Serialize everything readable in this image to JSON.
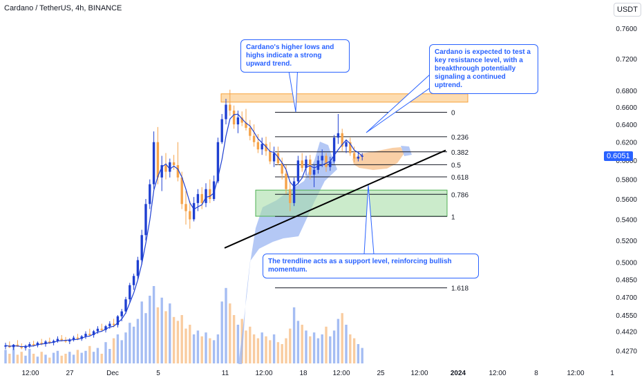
{
  "header": {
    "symbol_title": "Cardano / TetherUS, 4h, BINANCE",
    "currency_button": "USDT",
    "last_price": "0.6051"
  },
  "colors": {
    "candle_up": "#1e3fd1",
    "candle_down": "#f5a34a",
    "ma_line": "#1e3fd1",
    "cloud_bull": "#9bb6f2",
    "cloud_bear": "#f8c796",
    "resistance_zone": "#fcc070",
    "support_zone": "#a8dea8",
    "accent": "#2962ff",
    "fib_line": "#131722"
  },
  "annotations": {
    "higher_lows": "Cardano's higher lows and highs indicate a strong upward trend.",
    "resistance": "Cardano is expected to test a key resistance level, with a breakthrough potentially signaling a continued uptrend.",
    "trendline": "The trendline acts as a support level, reinforcing bullish momentum."
  },
  "chart_data": {
    "type": "candlestick",
    "title": "Cardano / TetherUS, 4h, BINANCE",
    "price_scale": "log",
    "y_axis_ticks": [
      "0.7600",
      "0.7200",
      "0.6800",
      "0.6600",
      "0.6400",
      "0.6200",
      "0.6000",
      "0.5800",
      "0.5600",
      "0.5400",
      "0.5200",
      "0.5000",
      "0.4850",
      "0.4700",
      "0.4550",
      "0.4420",
      "0.4270"
    ],
    "x_axis_ticks": [
      "12:00",
      "27",
      "Dec",
      "5",
      "11",
      "12:00",
      "18",
      "12:00",
      "25",
      "12:00",
      "2024",
      "12:00",
      "8",
      "12:00",
      "1"
    ],
    "last_price": 0.6051,
    "resistance_zone": [
      0.666,
      0.676
    ],
    "support_zone": [
      0.543,
      0.569
    ],
    "fib_levels": [
      {
        "label": "0",
        "price": 0.654
      },
      {
        "label": "0.236",
        "price": 0.626
      },
      {
        "label": "0.382",
        "price": 0.6093
      },
      {
        "label": "0.5",
        "price": 0.5955
      },
      {
        "label": "0.618",
        "price": 0.5826
      },
      {
        "label": "0.786",
        "price": 0.5647
      },
      {
        "label": "1",
        "price": 0.5428
      },
      {
        "label": "1.618",
        "price": 0.4777
      }
    ],
    "trendline": {
      "from_price": 0.513,
      "to_price": 0.611
    },
    "candles": [
      {
        "o": 0.43,
        "h": 0.433,
        "l": 0.428,
        "c": 0.431
      },
      {
        "o": 0.431,
        "h": 0.434,
        "l": 0.429,
        "c": 0.4295
      },
      {
        "o": 0.4295,
        "h": 0.432,
        "l": 0.4275,
        "c": 0.4315
      },
      {
        "o": 0.4315,
        "h": 0.435,
        "l": 0.43,
        "c": 0.43
      },
      {
        "o": 0.43,
        "h": 0.4325,
        "l": 0.428,
        "c": 0.429
      },
      {
        "o": 0.429,
        "h": 0.4315,
        "l": 0.427,
        "c": 0.4305
      },
      {
        "o": 0.4305,
        "h": 0.4335,
        "l": 0.429,
        "c": 0.432
      },
      {
        "o": 0.432,
        "h": 0.4345,
        "l": 0.43,
        "c": 0.431
      },
      {
        "o": 0.431,
        "h": 0.434,
        "l": 0.4295,
        "c": 0.433
      },
      {
        "o": 0.433,
        "h": 0.436,
        "l": 0.431,
        "c": 0.432
      },
      {
        "o": 0.432,
        "h": 0.435,
        "l": 0.43,
        "c": 0.434
      },
      {
        "o": 0.434,
        "h": 0.437,
        "l": 0.432,
        "c": 0.433
      },
      {
        "o": 0.433,
        "h": 0.4355,
        "l": 0.431,
        "c": 0.4345
      },
      {
        "o": 0.4345,
        "h": 0.438,
        "l": 0.433,
        "c": 0.436
      },
      {
        "o": 0.436,
        "h": 0.439,
        "l": 0.434,
        "c": 0.435
      },
      {
        "o": 0.435,
        "h": 0.4375,
        "l": 0.433,
        "c": 0.434
      },
      {
        "o": 0.434,
        "h": 0.4365,
        "l": 0.432,
        "c": 0.4355
      },
      {
        "o": 0.4355,
        "h": 0.4385,
        "l": 0.434,
        "c": 0.437
      },
      {
        "o": 0.437,
        "h": 0.44,
        "l": 0.435,
        "c": 0.436
      },
      {
        "o": 0.436,
        "h": 0.439,
        "l": 0.4345,
        "c": 0.438
      },
      {
        "o": 0.438,
        "h": 0.442,
        "l": 0.436,
        "c": 0.44
      },
      {
        "o": 0.44,
        "h": 0.444,
        "l": 0.438,
        "c": 0.439
      },
      {
        "o": 0.439,
        "h": 0.443,
        "l": 0.437,
        "c": 0.442
      },
      {
        "o": 0.442,
        "h": 0.446,
        "l": 0.44,
        "c": 0.444
      },
      {
        "o": 0.444,
        "h": 0.448,
        "l": 0.442,
        "c": 0.443
      },
      {
        "o": 0.443,
        "h": 0.447,
        "l": 0.441,
        "c": 0.446
      },
      {
        "o": 0.446,
        "h": 0.45,
        "l": 0.444,
        "c": 0.448
      },
      {
        "o": 0.448,
        "h": 0.452,
        "l": 0.445,
        "c": 0.447
      },
      {
        "o": 0.447,
        "h": 0.455,
        "l": 0.445,
        "c": 0.454
      },
      {
        "o": 0.454,
        "h": 0.46,
        "l": 0.45,
        "c": 0.458
      },
      {
        "o": 0.458,
        "h": 0.47,
        "l": 0.456,
        "c": 0.468
      },
      {
        "o": 0.468,
        "h": 0.482,
        "l": 0.465,
        "c": 0.48
      },
      {
        "o": 0.48,
        "h": 0.49,
        "l": 0.476,
        "c": 0.488
      },
      {
        "o": 0.488,
        "h": 0.505,
        "l": 0.485,
        "c": 0.502
      },
      {
        "o": 0.502,
        "h": 0.53,
        "l": 0.498,
        "c": 0.525
      },
      {
        "o": 0.525,
        "h": 0.56,
        "l": 0.52,
        "c": 0.555
      },
      {
        "o": 0.555,
        "h": 0.58,
        "l": 0.55,
        "c": 0.575
      },
      {
        "o": 0.575,
        "h": 0.632,
        "l": 0.57,
        "c": 0.62
      },
      {
        "o": 0.62,
        "h": 0.637,
        "l": 0.575,
        "c": 0.582
      },
      {
        "o": 0.582,
        "h": 0.605,
        "l": 0.568,
        "c": 0.595
      },
      {
        "o": 0.595,
        "h": 0.608,
        "l": 0.58,
        "c": 0.588
      },
      {
        "o": 0.588,
        "h": 0.602,
        "l": 0.582,
        "c": 0.598
      },
      {
        "o": 0.598,
        "h": 0.606,
        "l": 0.59,
        "c": 0.595
      },
      {
        "o": 0.595,
        "h": 0.62,
        "l": 0.578,
        "c": 0.582
      },
      {
        "o": 0.582,
        "h": 0.588,
        "l": 0.55,
        "c": 0.555
      },
      {
        "o": 0.555,
        "h": 0.568,
        "l": 0.535,
        "c": 0.548
      },
      {
        "o": 0.548,
        "h": 0.558,
        "l": 0.531,
        "c": 0.54
      },
      {
        "o": 0.54,
        "h": 0.562,
        "l": 0.538,
        "c": 0.556
      },
      {
        "o": 0.556,
        "h": 0.57,
        "l": 0.548,
        "c": 0.565
      },
      {
        "o": 0.565,
        "h": 0.572,
        "l": 0.55,
        "c": 0.556
      },
      {
        "o": 0.556,
        "h": 0.576,
        "l": 0.552,
        "c": 0.57
      },
      {
        "o": 0.57,
        "h": 0.58,
        "l": 0.556,
        "c": 0.56
      },
      {
        "o": 0.56,
        "h": 0.584,
        "l": 0.558,
        "c": 0.578
      },
      {
        "o": 0.578,
        "h": 0.625,
        "l": 0.576,
        "c": 0.62
      },
      {
        "o": 0.62,
        "h": 0.652,
        "l": 0.618,
        "c": 0.646
      },
      {
        "o": 0.646,
        "h": 0.67,
        "l": 0.64,
        "c": 0.663
      },
      {
        "o": 0.663,
        "h": 0.681,
        "l": 0.65,
        "c": 0.656
      },
      {
        "o": 0.656,
        "h": 0.662,
        "l": 0.635,
        "c": 0.64
      },
      {
        "o": 0.64,
        "h": 0.656,
        "l": 0.63,
        "c": 0.648
      },
      {
        "o": 0.648,
        "h": 0.655,
        "l": 0.638,
        "c": 0.642
      },
      {
        "o": 0.642,
        "h": 0.658,
        "l": 0.633,
        "c": 0.636
      },
      {
        "o": 0.636,
        "h": 0.645,
        "l": 0.622,
        "c": 0.627
      },
      {
        "o": 0.627,
        "h": 0.64,
        "l": 0.615,
        "c": 0.62
      },
      {
        "o": 0.62,
        "h": 0.629,
        "l": 0.608,
        "c": 0.612
      },
      {
        "o": 0.612,
        "h": 0.625,
        "l": 0.606,
        "c": 0.618
      },
      {
        "o": 0.618,
        "h": 0.626,
        "l": 0.605,
        "c": 0.61
      },
      {
        "o": 0.61,
        "h": 0.62,
        "l": 0.596,
        "c": 0.599
      },
      {
        "o": 0.599,
        "h": 0.615,
        "l": 0.593,
        "c": 0.608
      },
      {
        "o": 0.608,
        "h": 0.615,
        "l": 0.595,
        "c": 0.597
      },
      {
        "o": 0.597,
        "h": 0.603,
        "l": 0.58,
        "c": 0.586
      },
      {
        "o": 0.586,
        "h": 0.595,
        "l": 0.565,
        "c": 0.57
      },
      {
        "o": 0.57,
        "h": 0.578,
        "l": 0.548,
        "c": 0.556
      },
      {
        "o": 0.556,
        "h": 0.582,
        "l": 0.553,
        "c": 0.578
      },
      {
        "o": 0.578,
        "h": 0.605,
        "l": 0.575,
        "c": 0.6
      },
      {
        "o": 0.6,
        "h": 0.608,
        "l": 0.588,
        "c": 0.592
      },
      {
        "o": 0.592,
        "h": 0.605,
        "l": 0.584,
        "c": 0.601
      },
      {
        "o": 0.601,
        "h": 0.606,
        "l": 0.58,
        "c": 0.585
      },
      {
        "o": 0.585,
        "h": 0.596,
        "l": 0.572,
        "c": 0.59
      },
      {
        "o": 0.59,
        "h": 0.605,
        "l": 0.586,
        "c": 0.6
      },
      {
        "o": 0.6,
        "h": 0.612,
        "l": 0.593,
        "c": 0.605
      },
      {
        "o": 0.605,
        "h": 0.608,
        "l": 0.588,
        "c": 0.593
      },
      {
        "o": 0.593,
        "h": 0.604,
        "l": 0.589,
        "c": 0.599
      },
      {
        "o": 0.599,
        "h": 0.628,
        "l": 0.597,
        "c": 0.625
      },
      {
        "o": 0.625,
        "h": 0.652,
        "l": 0.618,
        "c": 0.63
      },
      {
        "o": 0.63,
        "h": 0.635,
        "l": 0.61,
        "c": 0.615
      },
      {
        "o": 0.615,
        "h": 0.623,
        "l": 0.608,
        "c": 0.62
      },
      {
        "o": 0.62,
        "h": 0.625,
        "l": 0.605,
        "c": 0.608
      },
      {
        "o": 0.608,
        "h": 0.615,
        "l": 0.598,
        "c": 0.602
      },
      {
        "o": 0.602,
        "h": 0.609,
        "l": 0.599,
        "c": 0.604
      },
      {
        "o": 0.604,
        "h": 0.608,
        "l": 0.6,
        "c": 0.6051
      }
    ],
    "volume": [
      14,
      10,
      16,
      9,
      12,
      8,
      15,
      10,
      7,
      12,
      9,
      6,
      11,
      13,
      8,
      10,
      12,
      9,
      14,
      11,
      13,
      18,
      12,
      16,
      10,
      22,
      15,
      26,
      30,
      24,
      32,
      42,
      38,
      46,
      64,
      52,
      70,
      80,
      58,
      68,
      54,
      62,
      48,
      44,
      50,
      36,
      40,
      30,
      34,
      28,
      32,
      26,
      24,
      30,
      64,
      78,
      62,
      50,
      40,
      46,
      34,
      38,
      30,
      26,
      32,
      28,
      24,
      30,
      22,
      20,
      26,
      36,
      58,
      44,
      40,
      34,
      28,
      32,
      26,
      30,
      38,
      28,
      34,
      46,
      52,
      40,
      30,
      26,
      20,
      16
    ]
  }
}
